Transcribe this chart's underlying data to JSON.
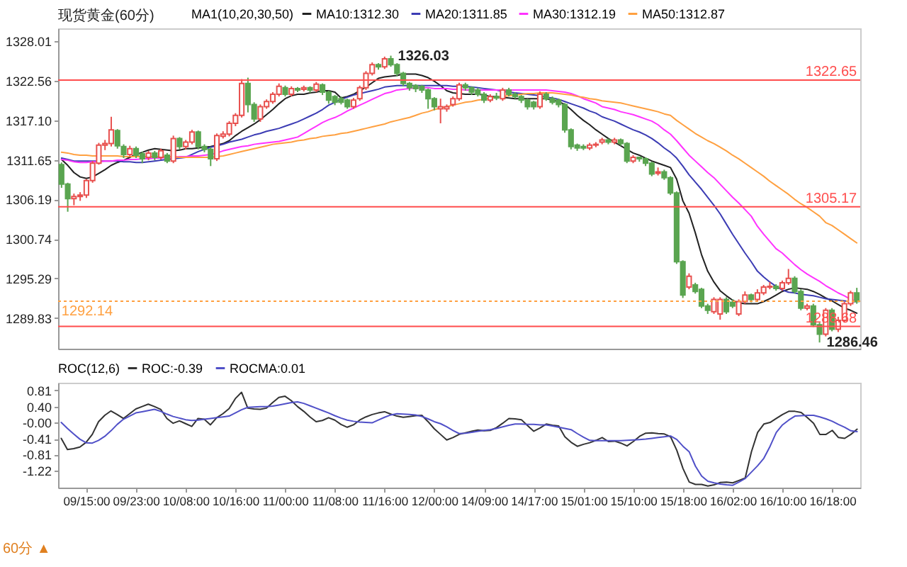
{
  "chart_data": [
    {
      "type": "candlestick",
      "title": "现货黄金(60分)",
      "legend_title": "MA1(10,20,30,50)",
      "legend": "top",
      "tick_labels": "y",
      "ylim": [
        1285.6,
        1329.8
      ],
      "yticks": [
        1328.01,
        1322.56,
        {
          "value": 1317.1,
          "label": "1317.10"
        },
        1311.65,
        1306.19,
        1300.74,
        1295.29,
        1289.83
      ],
      "ohlc": [
        [
          1311.0,
          1311.3,
          1307.8,
          1308.3
        ],
        [
          1308.3,
          1308.5,
          1304.5,
          1306.3
        ],
        [
          1306.3,
          1307.0,
          1305.4,
          1306.6
        ],
        [
          1306.6,
          1307.2,
          1306.0,
          1306.8
        ],
        [
          1306.8,
          1309.0,
          1306.4,
          1308.8
        ],
        [
          1308.8,
          1311.5,
          1308.5,
          1311.2
        ],
        [
          1311.2,
          1314.0,
          1311.0,
          1313.7
        ],
        [
          1313.7,
          1314.4,
          1313.0,
          1313.9
        ],
        [
          1313.9,
          1317.6,
          1313.5,
          1315.8
        ],
        [
          1315.7,
          1315.9,
          1313.2,
          1313.6
        ],
        [
          1313.5,
          1313.8,
          1311.9,
          1312.4
        ],
        [
          1312.4,
          1313.6,
          1312.0,
          1313.2
        ],
        [
          1313.2,
          1313.5,
          1311.9,
          1312.3
        ],
        [
          1312.5,
          1312.8,
          1311.2,
          1311.8
        ],
        [
          1312.0,
          1312.9,
          1311.6,
          1312.6
        ],
        [
          1312.6,
          1312.9,
          1311.6,
          1312.0
        ],
        [
          1312.0,
          1313.2,
          1311.7,
          1312.9
        ],
        [
          1312.3,
          1312.6,
          1311.2,
          1311.5
        ],
        [
          1311.5,
          1315.0,
          1311.2,
          1314.6
        ],
        [
          1314.6,
          1314.8,
          1313.1,
          1313.5
        ],
        [
          1313.5,
          1314.4,
          1313.1,
          1314.1
        ],
        [
          1314.1,
          1315.8,
          1313.8,
          1315.5
        ],
        [
          1315.5,
          1315.7,
          1313.1,
          1313.5
        ],
        [
          1313.5,
          1313.8,
          1312.7,
          1313.1
        ],
        [
          1313.1,
          1313.4,
          1310.8,
          1311.8
        ],
        [
          1311.8,
          1315.3,
          1311.5,
          1315.0
        ],
        [
          1314.9,
          1315.6,
          1314.6,
          1315.2
        ],
        [
          1315.2,
          1317.0,
          1314.9,
          1316.7
        ],
        [
          1316.7,
          1318.1,
          1316.3,
          1317.8
        ],
        [
          1317.8,
          1322.8,
          1317.5,
          1322.2
        ],
        [
          1322.2,
          1323.0,
          1318.2,
          1319.3
        ],
        [
          1319.3,
          1319.6,
          1316.9,
          1317.3
        ],
        [
          1317.3,
          1319.3,
          1316.9,
          1319.0
        ],
        [
          1319.0,
          1320.0,
          1318.7,
          1319.7
        ],
        [
          1319.7,
          1321.0,
          1319.4,
          1320.7
        ],
        [
          1320.7,
          1322.2,
          1320.4,
          1321.8
        ],
        [
          1321.6,
          1321.9,
          1320.4,
          1320.7
        ],
        [
          1320.7,
          1321.8,
          1320.4,
          1321.5
        ],
        [
          1321.5,
          1321.7,
          1321.0,
          1321.3
        ],
        [
          1321.4,
          1321.9,
          1321.1,
          1321.6
        ],
        [
          1321.6,
          1321.8,
          1320.9,
          1321.3
        ],
        [
          1321.3,
          1322.4,
          1321.0,
          1322.1
        ],
        [
          1322.0,
          1322.2,
          1320.6,
          1321.0
        ],
        [
          1321.0,
          1321.2,
          1319.4,
          1319.9
        ],
        [
          1320.4,
          1320.6,
          1319.2,
          1319.6
        ],
        [
          1320.1,
          1320.4,
          1319.3,
          1319.6
        ],
        [
          1319.9,
          1320.1,
          1318.7,
          1319.0
        ],
        [
          1319.0,
          1320.2,
          1318.7,
          1319.9
        ],
        [
          1320.1,
          1321.9,
          1319.8,
          1321.6
        ],
        [
          1321.6,
          1323.9,
          1321.3,
          1323.6
        ],
        [
          1323.6,
          1325.1,
          1323.3,
          1324.8
        ],
        [
          1324.8,
          1325.0,
          1324.1,
          1324.5
        ],
        [
          1324.5,
          1325.9,
          1324.2,
          1325.6
        ],
        [
          1325.6,
          1326.03,
          1324.5,
          1324.8
        ],
        [
          1324.8,
          1325.0,
          1323.2,
          1323.6
        ],
        [
          1323.6,
          1323.8,
          1321.8,
          1322.2
        ],
        [
          1322.2,
          1322.4,
          1321.2,
          1321.6
        ],
        [
          1321.9,
          1322.1,
          1321.0,
          1321.5
        ],
        [
          1321.8,
          1322.0,
          1320.9,
          1321.3
        ],
        [
          1321.3,
          1321.5,
          1318.7,
          1320.1
        ],
        [
          1320.1,
          1320.3,
          1318.5,
          1319.0
        ],
        [
          1318.7,
          1320.1,
          1316.7,
          1319.0
        ],
        [
          1318.7,
          1319.3,
          1318.3,
          1319.0
        ],
        [
          1319.3,
          1320.4,
          1319.0,
          1320.1
        ],
        [
          1320.1,
          1322.3,
          1319.8,
          1322.0
        ],
        [
          1322.0,
          1322.3,
          1321.2,
          1321.6
        ],
        [
          1321.6,
          1321.8,
          1320.6,
          1321.0
        ],
        [
          1321.3,
          1321.6,
          1320.4,
          1320.7
        ],
        [
          1320.7,
          1321.0,
          1319.5,
          1319.9
        ],
        [
          1319.9,
          1320.7,
          1319.6,
          1320.4
        ],
        [
          1320.4,
          1320.9,
          1319.9,
          1320.2
        ],
        [
          1320.1,
          1321.6,
          1319.8,
          1321.3
        ],
        [
          1321.3,
          1321.6,
          1320.4,
          1320.7
        ],
        [
          1320.7,
          1321.0,
          1320.1,
          1320.4
        ],
        [
          1320.4,
          1320.6,
          1319.5,
          1319.9
        ],
        [
          1319.9,
          1320.1,
          1318.6,
          1319.0
        ],
        [
          1319.6,
          1319.8,
          1318.6,
          1319.0
        ],
        [
          1319.0,
          1321.1,
          1318.7,
          1320.7
        ],
        [
          1320.7,
          1321.0,
          1319.8,
          1320.1
        ],
        [
          1320.1,
          1320.4,
          1319.3,
          1319.6
        ],
        [
          1319.9,
          1320.1,
          1318.9,
          1319.3
        ],
        [
          1319.3,
          1319.5,
          1315.4,
          1315.8
        ],
        [
          1315.8,
          1316.0,
          1313.1,
          1313.5
        ],
        [
          1313.7,
          1313.9,
          1312.9,
          1313.3
        ],
        [
          1313.5,
          1313.8,
          1313.0,
          1313.3
        ],
        [
          1313.3,
          1314.0,
          1313.0,
          1313.7
        ],
        [
          1313.7,
          1314.1,
          1313.4,
          1313.8
        ],
        [
          1314.1,
          1314.7,
          1313.8,
          1314.4
        ],
        [
          1314.4,
          1314.6,
          1313.8,
          1314.1
        ],
        [
          1314.1,
          1314.7,
          1313.8,
          1314.4
        ],
        [
          1314.4,
          1314.6,
          1313.6,
          1313.9
        ],
        [
          1313.9,
          1314.1,
          1311.2,
          1311.5
        ],
        [
          1311.5,
          1312.3,
          1311.2,
          1312.0
        ],
        [
          1312.0,
          1312.1,
          1311.4,
          1311.8
        ],
        [
          1311.8,
          1312.0,
          1310.8,
          1311.2
        ],
        [
          1311.2,
          1311.4,
          1309.4,
          1309.7
        ],
        [
          1309.8,
          1310.6,
          1309.5,
          1310.0
        ],
        [
          1310.0,
          1310.3,
          1308.9,
          1309.2
        ],
        [
          1309.2,
          1309.4,
          1306.8,
          1307.1
        ],
        [
          1307.1,
          1307.3,
          1297.3,
          1297.6
        ],
        [
          1297.6,
          1297.8,
          1292.6,
          1293.0
        ],
        [
          1294.1,
          1296.0,
          1293.8,
          1295.6
        ],
        [
          1294.4,
          1294.7,
          1293.2,
          1293.5
        ],
        [
          1293.8,
          1294.0,
          1291.2,
          1291.5
        ],
        [
          1291.5,
          1291.8,
          1290.4,
          1290.9
        ],
        [
          1290.7,
          1292.7,
          1290.4,
          1292.4
        ],
        [
          1290.4,
          1292.7,
          1289.6,
          1292.4
        ],
        [
          1292.4,
          1292.7,
          1290.4,
          1290.7
        ],
        [
          1292.0,
          1292.4,
          1291.2,
          1291.5
        ],
        [
          1290.4,
          1292.4,
          1290.1,
          1292.1
        ],
        [
          1292.1,
          1293.5,
          1291.8,
          1293.0
        ],
        [
          1293.0,
          1293.2,
          1292.0,
          1292.4
        ],
        [
          1292.4,
          1293.8,
          1292.1,
          1293.3
        ],
        [
          1293.3,
          1294.4,
          1293.0,
          1294.1
        ],
        [
          1294.1,
          1294.8,
          1293.8,
          1294.2
        ],
        [
          1294.2,
          1294.5,
          1293.6,
          1293.9
        ],
        [
          1293.9,
          1295.0,
          1293.6,
          1294.7
        ],
        [
          1294.7,
          1296.6,
          1294.4,
          1295.3
        ],
        [
          1295.3,
          1295.6,
          1293.2,
          1293.5
        ],
        [
          1293.5,
          1293.8,
          1290.9,
          1291.2
        ],
        [
          1291.2,
          1291.8,
          1290.9,
          1291.5
        ],
        [
          1291.5,
          1291.8,
          1288.6,
          1288.9
        ],
        [
          1288.9,
          1289.2,
          1286.46,
          1287.6
        ],
        [
          1287.6,
          1291.2,
          1287.3,
          1290.9
        ],
        [
          1290.9,
          1291.2,
          1288.0,
          1288.3
        ],
        [
          1288.3,
          1290.0,
          1287.9,
          1289.5
        ],
        [
          1289.5,
          1292.1,
          1289.2,
          1291.8
        ],
        [
          1291.8,
          1293.6,
          1291.5,
          1293.3
        ],
        [
          1293.3,
          1294.0,
          1291.8,
          1292.1
        ]
      ],
      "series": [
        {
          "type": "line",
          "name": "MA10:1312.30",
          "color": "#222222",
          "values": [
            1311.7,
            1310.9,
            1309.9,
            1309.3,
            1309.1,
            1309.3,
            1309.8,
            1310.3,
            1310.9,
            1311.3,
            1311.6,
            1312.0,
            1312.4,
            1312.7,
            1313.0,
            1313.2,
            1313.1,
            1313.0,
            1312.9,
            1313.0,
            1313.2,
            1313.2,
            1313.3,
            1313.4,
            1313.5,
            1313.7,
            1313.9,
            1314.3,
            1315.0,
            1315.6,
            1316.1,
            1316.6,
            1317.2,
            1317.9,
            1318.6,
            1319.4,
            1320.1,
            1320.5,
            1320.7,
            1320.7,
            1320.9,
            1321.0,
            1321.2,
            1321.2,
            1321.0,
            1320.2,
            1320.4,
            1320.7,
            1321.2,
            1321.7,
            1322.3,
            1322.9,
            1323.1,
            1323.2,
            1323.3,
            1323.5,
            1323.5,
            1323.5,
            1323.3,
            1323.0,
            1322.5,
            1321.9,
            1321.2,
            1320.9,
            1320.8,
            1320.7,
            1320.7,
            1320.7,
            1320.6,
            1320.4,
            1320.4,
            1320.3,
            1320.2,
            1320.1,
            1320.1,
            1320.1,
            1320.1,
            1320.1,
            1320.1,
            1319.9,
            1319.7,
            1319.3,
            1318.6,
            1317.8,
            1317.1,
            1316.5,
            1315.8,
            1315.2,
            1314.6,
            1314.1,
            1313.6,
            1313.1,
            1312.6,
            1312.3,
            1311.9,
            1311.5,
            1311.2,
            1310.9,
            1310.6,
            1309.0,
            1306.0,
            1304.3,
            1301.6,
            1298.6,
            1296.3,
            1294.8,
            1293.6,
            1292.9,
            1292.3,
            1291.9,
            1291.8,
            1291.8,
            1291.8,
            1292.1,
            1292.5,
            1293.0,
            1293.5,
            1293.8,
            1294.0,
            1293.9,
            1293.8,
            1293.5,
            1293.1,
            1292.6,
            1292.2,
            1291.7,
            1291.2,
            1290.9,
            1290.5
          ]
        },
        {
          "type": "line",
          "name": "MA20:1311.85",
          "color": "#3c3cb4",
          "values": [
            1311.9,
            1311.7,
            1311.5,
            1311.5,
            1311.5,
            1311.5,
            1311.5,
            1311.5,
            1311.5,
            1311.5,
            1311.4,
            1311.4,
            1311.3,
            1311.3,
            1311.4,
            1311.5,
            1311.6,
            1311.7,
            1311.8,
            1311.9,
            1312.0,
            1312.4,
            1312.8,
            1313.1,
            1313.4,
            1313.6,
            1313.8,
            1314.1,
            1314.3,
            1314.5,
            1314.8,
            1315.1,
            1315.3,
            1315.6,
            1315.8,
            1316.0,
            1316.3,
            1316.6,
            1316.9,
            1317.3,
            1317.7,
            1318.1,
            1318.6,
            1319.2,
            1319.6,
            1320.0,
            1320.3,
            1320.6,
            1320.8,
            1321.0,
            1321.2,
            1321.4,
            1321.7,
            1321.8,
            1321.9,
            1321.9,
            1321.9,
            1321.9,
            1321.9,
            1321.9,
            1321.9,
            1321.9,
            1321.9,
            1321.8,
            1321.8,
            1321.8,
            1321.7,
            1321.6,
            1321.5,
            1321.4,
            1321.3,
            1321.1,
            1321.0,
            1320.9,
            1320.8,
            1320.7,
            1320.6,
            1320.5,
            1320.3,
            1320.2,
            1320.0,
            1319.7,
            1319.4,
            1319.1,
            1318.8,
            1318.4,
            1318.1,
            1317.6,
            1317.3,
            1317.0,
            1316.6,
            1316.2,
            1315.8,
            1315.5,
            1315.1,
            1314.6,
            1314.0,
            1313.3,
            1312.7,
            1311.9,
            1310.8,
            1309.6,
            1308.6,
            1307.6,
            1306.5,
            1305.4,
            1304.2,
            1302.8,
            1301.4,
            1300.1,
            1298.8,
            1297.6,
            1296.3,
            1295.5,
            1294.8,
            1294.2,
            1293.7,
            1293.4,
            1293.3,
            1293.1,
            1293.0,
            1292.9,
            1292.7,
            1292.5,
            1292.4,
            1292.3,
            1292.2,
            1292.1,
            1292.1
          ]
        },
        {
          "type": "line",
          "name": "MA30:1312.19",
          "color": "#ff33ff",
          "values": [
            1311.7,
            1311.6,
            1311.4,
            1311.3,
            1311.3,
            1311.4,
            1311.4,
            1311.5,
            1311.5,
            1311.6,
            1311.6,
            1311.7,
            1311.7,
            1311.8,
            1311.8,
            1311.9,
            1311.9,
            1312.0,
            null,
            1312.1,
            1312.1,
            1312.2,
            1312.2,
            1312.3,
            1312.4,
            1312.6,
            1312.9,
            1313.1,
            1313.3,
            1313.5,
            1313.6,
            1313.8,
            1313.9,
            1314.0,
            1314.1,
            1314.2,
            1314.4,
            1314.6,
            1314.8,
            1315.3,
            1315.8,
            1316.3,
            1316.8,
            1317.2,
            1317.5,
            1317.9,
            1318.4,
            1318.8,
            1319.2,
            1319.6,
            1320.0,
            1320.4,
            1320.8,
            1321.0,
            1321.3,
            1321.4,
            1321.5,
            1321.6,
            1321.6,
            1321.6,
            1321.5,
            1321.5,
            1321.5,
            1321.4,
            1321.4,
            1321.3,
            1321.3,
            1321.3,
            1321.3,
            1321.3,
            1321.3,
            1321.3,
            1321.3,
            1321.3,
            1321.3,
            1321.3,
            1321.3,
            1321.3,
            1321.3,
            1321.2,
            1321.1,
            1321.0,
            1320.8,
            1320.5,
            1320.1,
            1319.8,
            1319.5,
            1319.0,
            1318.8,
            1318.6,
            1318.3,
            1318.1,
            1317.9,
            1317.6,
            1317.3,
            1317.0,
            1316.5,
            1315.8,
            1315.2,
            1314.3,
            1313.3,
            1312.3,
            1311.5,
            1310.7,
            1309.9,
            1309.2,
            1308.3,
            1307.4,
            1306.5,
            1305.7,
            1304.8,
            1303.9,
            1302.5,
            1301.4,
            1300.4,
            1299.4,
            1298.8,
            1298.0,
            1297.2,
            1296.5,
            1295.9,
            1295.4,
            1294.9,
            1294.3,
            1293.8,
            1293.3,
            1292.9,
            1292.4,
            1292.1
          ]
        },
        {
          "type": "line",
          "name": "MA50:1312.87",
          "color": "#ffa040",
          "values": [
            1312.7,
            1312.6,
            1312.4,
            1312.3,
            1312.3,
            1312.2,
            1312.2,
            1312.2,
            1312.2,
            1312.2,
            1312.1,
            1312.1,
            1312.1,
            1312.1,
            1312.1,
            1312.1,
            1312.1,
            1312.1,
            1312.1,
            1312.0,
            1312.0,
            1312.0,
            1312.0,
            1312.0,
            1312.0,
            1312.1,
            1312.2,
            1312.4,
            1312.6,
            1312.8,
            1313.0,
            1313.2,
            1313.4,
            1313.6,
            1313.8,
            1313.9,
            1314.0,
            1314.1,
            1314.3,
            1314.4,
            1314.6,
            1314.7,
            1314.9,
            1315.0,
            1315.1,
            1315.3,
            1315.4,
            1315.6,
            1315.8,
            1316.0,
            1316.2,
            1316.4,
            1316.6,
            1316.9,
            1317.1,
            1317.3,
            1317.5,
            1317.8,
            1318.1,
            1318.3,
            1318.6,
            1318.8,
            1319.0,
            1319.2,
            1319.4,
            1319.6,
            1319.7,
            1319.9,
            1320.0,
            1320.2,
            1320.3,
            1320.4,
            1320.5,
            1320.6,
            1320.7,
            1320.8,
            1320.8,
            1320.9,
            1320.9,
            1320.9,
            1320.8,
            1320.7,
            1320.6,
            1320.4,
            1320.3,
            1320.1,
            1320.0,
            1319.8,
            1319.7,
            1319.6,
            1319.5,
            1319.3,
            1319.1,
            1318.9,
            1318.7,
            1318.5,
            1318.3,
            1318.0,
            1317.8,
            1317.1,
            1316.5,
            1315.9,
            1315.3,
            1314.8,
            1314.3,
            1313.9,
            1313.4,
            1312.9,
            1312.3,
            1311.8,
            1311.2,
            1310.6,
            1310.0,
            1309.4,
            1308.7,
            1308.1,
            1307.5,
            1306.9,
            1306.2,
            1305.6,
            1305.1,
            1304.5,
            1303.9,
            1303.0,
            1302.6,
            1302.0,
            1301.4,
            1300.8,
            1300.2
          ]
        }
      ],
      "ref_lines": [
        {
          "axis": "y",
          "value": 1322.65,
          "label": "1322.65",
          "color": "#ff4d4d",
          "line_style": "solid"
        },
        {
          "axis": "y",
          "value": 1305.17,
          "label": "1305.17",
          "color": "#ff4d4d",
          "line_style": "solid"
        },
        {
          "axis": "y",
          "value": 1288.68,
          "label": "1288.68",
          "color": "#ff4d4d",
          "line_style": "solid"
        },
        {
          "axis": "y",
          "value": 1292.14,
          "label": "1292.14",
          "color": "#ffa040",
          "line_style": "dotted"
        }
      ],
      "annotations": [
        "1326.03",
        "1286.46"
      ]
    },
    {
      "type": "line",
      "legend_title": "ROC(12,6)",
      "legend": "top left",
      "categories": [
        null,
        null,
        null,
        null,
        "09/15:00",
        null,
        null,
        null,
        null,
        null,
        null,
        null,
        "09/23:00",
        null,
        null,
        null,
        null,
        null,
        null,
        null,
        "10/08:00",
        null,
        null,
        null,
        null,
        null,
        null,
        null,
        "10/16:00",
        null,
        null,
        null,
        null,
        null,
        null,
        null,
        "11/00:00",
        null,
        null,
        null,
        null,
        null,
        null,
        null,
        "11/08:00",
        null,
        null,
        null,
        null,
        null,
        null,
        null,
        "11/16:00",
        null,
        null,
        null,
        null,
        null,
        null,
        null,
        "12/00:00",
        null,
        null,
        null,
        null,
        null,
        null,
        null,
        "14/09:00",
        null,
        null,
        null,
        null,
        null,
        null,
        null,
        "14/17:00",
        null,
        null,
        null,
        null,
        null,
        null,
        null,
        "15/01:00",
        null,
        null,
        null,
        null,
        null,
        null,
        null,
        "15/10:00",
        null,
        null,
        null,
        null,
        null,
        null,
        null,
        "15/18:00",
        null,
        null,
        null,
        null,
        null,
        null,
        null,
        "16/02:00",
        null,
        null,
        null,
        null,
        null,
        null,
        null,
        "16/10:00",
        null,
        null,
        null,
        null,
        null,
        null,
        null,
        "16/18:00",
        null,
        null,
        null,
        null
      ],
      "ylim": [
        -1.64,
        1.0
      ],
      "yticks": [
        0.81,
        {
          "value": 0.4,
          "label": "0.40"
        },
        {
          "value": 0,
          "label": "-0.00"
        },
        -0.41,
        -0.81,
        -1.22
      ],
      "series": [
        {
          "name": "ROC:-0.39",
          "color": "#333333",
          "values": [
            -0.4,
            -0.68,
            -0.66,
            -0.62,
            -0.5,
            -0.3,
            0.02,
            0.18,
            0.29,
            0.2,
            0.1,
            0.22,
            0.34,
            0.4,
            0.46,
            0.4,
            0.33,
            0.1,
            -0.02,
            0.04,
            -0.03,
            -0.1,
            0.1,
            0.08,
            -0.06,
            0.12,
            0.22,
            0.35,
            0.6,
            0.76,
            0.36,
            0.34,
            0.33,
            0.36,
            0.5,
            0.63,
            0.66,
            0.55,
            0.4,
            0.28,
            0.14,
            0.02,
            0.05,
            0.12,
            0.06,
            -0.05,
            -0.12,
            -0.06,
            0.06,
            0.14,
            0.2,
            0.24,
            0.27,
            0.21,
            0.16,
            0.13,
            0.15,
            0.17,
            0.18,
            0.02,
            -0.16,
            -0.3,
            -0.44,
            -0.38,
            -0.3,
            -0.26,
            -0.22,
            -0.19,
            -0.21,
            -0.2,
            -0.13,
            -0.02,
            0.1,
            0.09,
            0.07,
            -0.08,
            -0.22,
            -0.14,
            -0.04,
            -0.07,
            -0.09,
            -0.36,
            -0.5,
            -0.6,
            -0.55,
            -0.51,
            -0.45,
            -0.38,
            -0.48,
            -0.47,
            -0.52,
            -0.59,
            -0.48,
            -0.35,
            -0.27,
            -0.26,
            -0.28,
            -0.29,
            -0.36,
            -0.7,
            -1.16,
            -1.5,
            -1.56,
            -1.56,
            -1.6,
            -1.57,
            -1.51,
            -1.5,
            -1.52,
            -1.46,
            -1.4,
            -0.74,
            -0.25,
            -0.04,
            0.0,
            0.1,
            0.2,
            0.28,
            0.28,
            0.25,
            0.12,
            -0.02,
            -0.3,
            -0.3,
            -0.2,
            -0.38,
            -0.4,
            -0.3,
            -0.17
          ]
        },
        {
          "name": "ROCMA:0.01",
          "color": "#5050c8",
          "values": [
            0.0,
            -0.15,
            -0.29,
            -0.42,
            -0.51,
            -0.52,
            -0.45,
            -0.35,
            -0.21,
            -0.05,
            0.08,
            0.16,
            0.24,
            0.27,
            0.3,
            0.33,
            0.28,
            0.21,
            0.15,
            0.11,
            0.07,
            0.05,
            0.06,
            0.08,
            0.1,
            0.12,
            0.14,
            0.16,
            0.24,
            0.32,
            0.38,
            0.39,
            0.4,
            0.4,
            0.41,
            0.44,
            0.47,
            0.5,
            0.52,
            0.48,
            0.42,
            0.36,
            0.3,
            0.24,
            0.17,
            0.11,
            0.06,
            0.03,
            0.01,
            0.0,
            -0.01,
            0.06,
            0.13,
            0.19,
            0.22,
            0.21,
            0.2,
            0.19,
            0.15,
            0.09,
            0.02,
            -0.03,
            -0.11,
            -0.2,
            -0.28,
            -0.27,
            -0.25,
            -0.22,
            -0.2,
            -0.18,
            -0.15,
            -0.11,
            -0.07,
            -0.04,
            -0.04,
            -0.05,
            -0.05,
            -0.06,
            -0.06,
            -0.09,
            -0.12,
            -0.15,
            -0.18,
            -0.28,
            -0.37,
            -0.45,
            -0.46,
            -0.46,
            -0.46,
            -0.46,
            -0.46,
            -0.45,
            -0.44,
            -0.43,
            -0.42,
            -0.4,
            -0.38,
            -0.36,
            -0.34,
            -0.43,
            -0.6,
            -0.74,
            -1.1,
            -1.35,
            -1.48,
            -1.52,
            -1.55,
            -1.57,
            -1.58,
            -1.5,
            -1.41,
            -1.25,
            -1.09,
            -0.9,
            -0.6,
            -0.25,
            -0.06,
            0.06,
            0.16,
            0.17,
            0.18,
            0.18,
            0.14,
            0.09,
            0.03,
            -0.05,
            -0.12,
            -0.21,
            -0.23
          ]
        }
      ],
      "annotations": [
        "60分 ▲"
      ]
    }
  ]
}
